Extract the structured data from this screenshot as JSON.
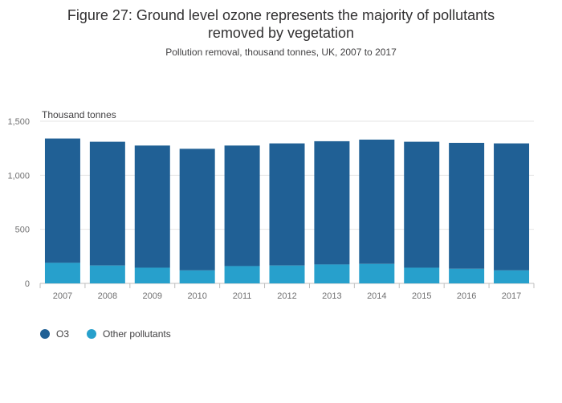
{
  "header": {
    "title_line1": "Figure 27: Ground level ozone represents the majority of pollutants",
    "title_line2": "removed by vegetation",
    "subtitle": "Pollution removal, thousand tonnes, UK, 2007 to 2017"
  },
  "colors": {
    "o3": "#206095",
    "other": "#27a0cc",
    "grid": "#e5e5e5",
    "axis": "#bfbfbf"
  },
  "chart_data": {
    "type": "bar",
    "stacked": true,
    "title": "Figure 27: Ground level ozone represents the majority of pollutants removed by vegetation",
    "subtitle": "Pollution removal, thousand tonnes, UK, 2007 to 2017",
    "ylabel": "Thousand tonnes",
    "xlabel": "",
    "ylim": [
      0,
      1500
    ],
    "yticks": [
      0,
      500,
      1000,
      1500
    ],
    "ytick_labels": [
      "0",
      "500",
      "1,000",
      "1,500"
    ],
    "grid": true,
    "legend_position": "bottom-left",
    "categories": [
      "2007",
      "2008",
      "2009",
      "2010",
      "2011",
      "2012",
      "2013",
      "2014",
      "2015",
      "2016",
      "2017"
    ],
    "series": [
      {
        "name": "Other pollutants",
        "values": [
          190,
          165,
          145,
          120,
          160,
          165,
          175,
          180,
          145,
          135,
          120
        ]
      },
      {
        "name": "O3",
        "values": [
          1150,
          1145,
          1130,
          1125,
          1115,
          1130,
          1140,
          1150,
          1165,
          1165,
          1175
        ]
      }
    ]
  }
}
